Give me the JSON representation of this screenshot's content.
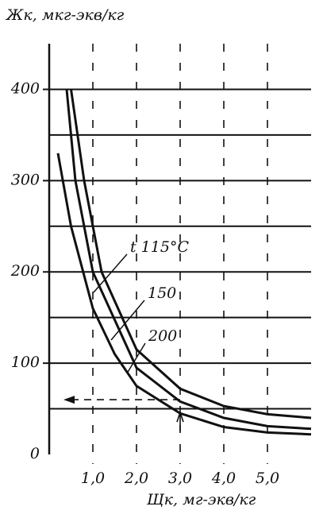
{
  "chart_data": {
    "type": "line",
    "y_label": "Жк, мкг-экв/кг",
    "x_label": "Щк, мг-экв/кг",
    "xlim": [
      0,
      6
    ],
    "ylim": [
      0,
      450
    ],
    "xticks": [
      {
        "value": 1,
        "label": "1,0"
      },
      {
        "value": 2,
        "label": "2,0"
      },
      {
        "value": 3,
        "label": "3,0"
      },
      {
        "value": 4,
        "label": "4,0"
      },
      {
        "value": 5,
        "label": "5,0"
      }
    ],
    "yticks": [
      0,
      100,
      200,
      300,
      400
    ],
    "minor_yticks": [
      50,
      150,
      250,
      350
    ],
    "grid": true,
    "color": "#111111",
    "reference_point": {
      "x": 3,
      "y": 60
    },
    "series": [
      {
        "name": "t  115°C",
        "x": [
          0.5,
          0.8,
          1.2,
          2.0,
          3.0,
          4.0,
          5.0,
          6.0
        ],
        "values": [
          400,
          300,
          200,
          115,
          72,
          53,
          44,
          40
        ]
      },
      {
        "name": "150",
        "x": [
          0.4,
          0.6,
          1.0,
          2.0,
          3.0,
          4.0,
          5.0,
          6.0
        ],
        "values": [
          400,
          300,
          200,
          95,
          58,
          40,
          31,
          28
        ]
      },
      {
        "name": "200",
        "x": [
          0.2,
          0.5,
          1.0,
          1.5,
          2.0,
          3.0,
          4.0,
          5.0,
          6.0
        ],
        "values": [
          330,
          250,
          160,
          110,
          75,
          45,
          30,
          24,
          22
        ]
      }
    ]
  }
}
